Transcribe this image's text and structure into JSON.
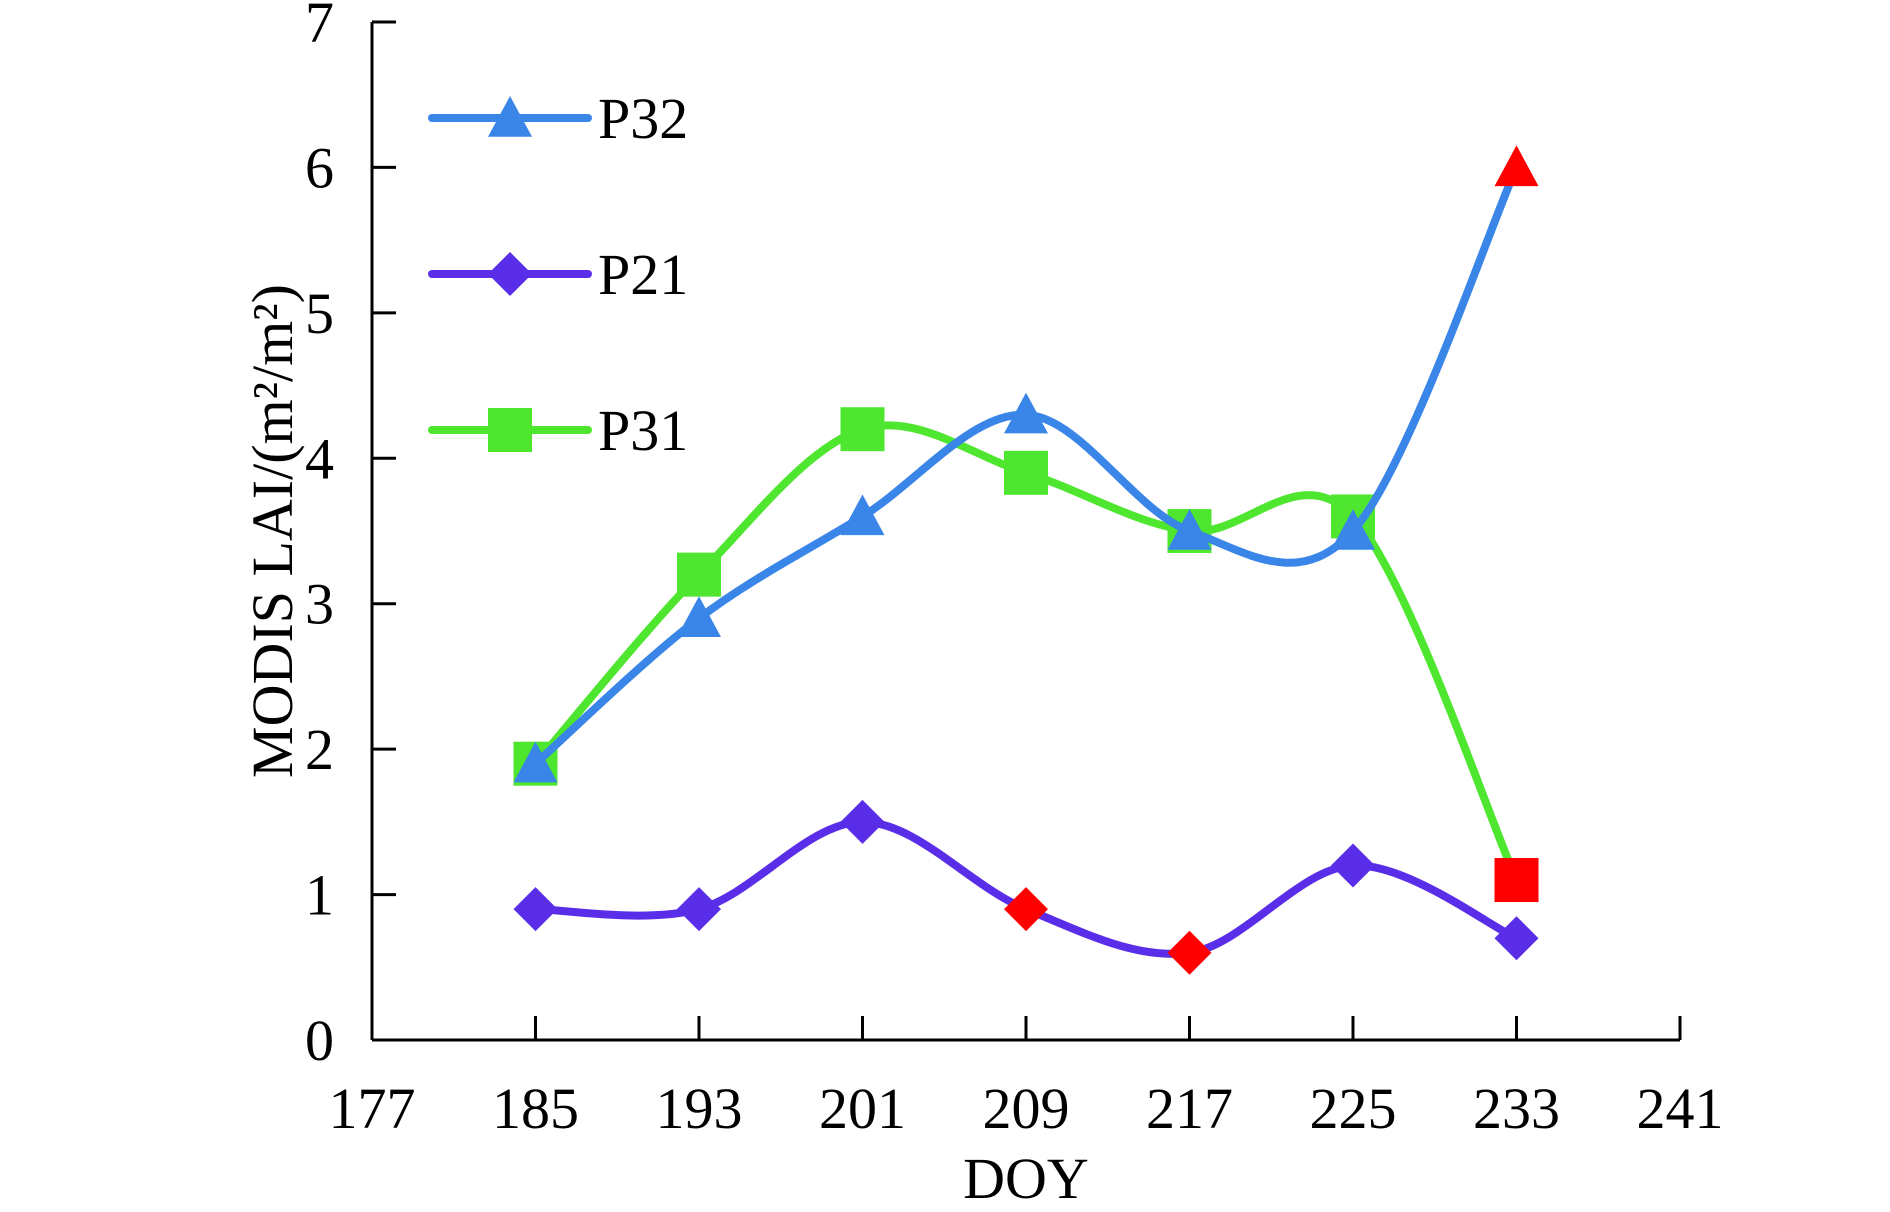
{
  "chart_data": {
    "type": "line",
    "xlabel": "DOY",
    "ylabel": "MODIS LAI/(m²/m²)",
    "xlim": [
      177,
      241
    ],
    "ylim": [
      0,
      7
    ],
    "x_ticks": [
      "177",
      "185",
      "193",
      "201",
      "209",
      "217",
      "225",
      "233",
      "241"
    ],
    "y_ticks": [
      "0",
      "1",
      "2",
      "3",
      "4",
      "5",
      "6",
      "7"
    ],
    "x": [
      185,
      193,
      201,
      209,
      217,
      225,
      233
    ],
    "highlight_color": "#ff0000",
    "legend_position": "top-left",
    "grid": false,
    "smooth": true,
    "series": [
      {
        "name": "P32",
        "color": "#3a86e8",
        "marker": "triangle",
        "values": [
          1.9,
          2.9,
          3.6,
          4.3,
          3.5,
          3.5,
          6.0
        ],
        "highlighted": [
          false,
          false,
          false,
          false,
          false,
          false,
          true
        ]
      },
      {
        "name": "P21",
        "color": "#5a2ee8",
        "marker": "diamond",
        "values": [
          0.9,
          0.9,
          1.5,
          0.9,
          0.6,
          1.2,
          0.7
        ],
        "highlighted": [
          false,
          false,
          false,
          true,
          true,
          false,
          false
        ]
      },
      {
        "name": "P31",
        "color": "#4ee62e",
        "marker": "square",
        "values": [
          1.9,
          3.2,
          4.2,
          3.9,
          3.5,
          3.6,
          1.1
        ],
        "highlighted": [
          false,
          false,
          false,
          false,
          false,
          false,
          true
        ]
      }
    ]
  }
}
